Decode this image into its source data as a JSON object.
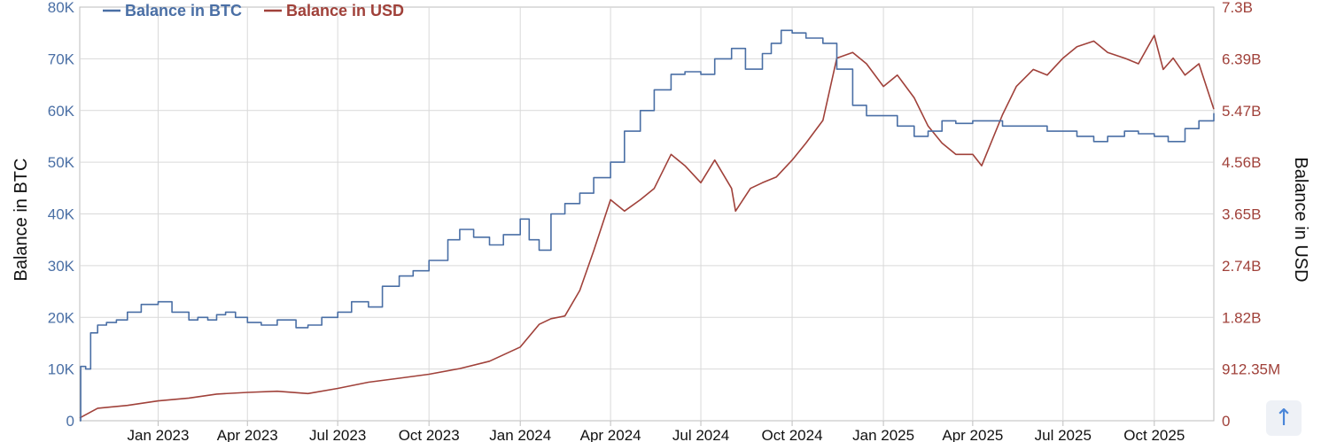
{
  "chart_data": {
    "type": "line",
    "title": "",
    "xlabel": "",
    "ylabel": "Balance in BTC",
    "y2label": "Balance in USD",
    "grid": true,
    "legend_position": "top-left",
    "x_ticks": [
      "Jan 2023",
      "Apr 2023",
      "Jul 2023",
      "Oct 2023",
      "Jan 2024",
      "Apr 2024",
      "Jul 2024",
      "Oct 2024",
      "Jan 2025",
      "Apr 2025",
      "Jul 2025",
      "Oct 2025"
    ],
    "x_range": [
      "2022-10-14",
      "2025-11-30"
    ],
    "y_ticks": [
      "0",
      "10K",
      "20K",
      "30K",
      "40K",
      "50K",
      "60K",
      "70K",
      "80K"
    ],
    "ylim": [
      0,
      80000
    ],
    "y2_ticks": [
      "0",
      "912.35M",
      "1.82B",
      "2.74B",
      "3.65B",
      "4.56B",
      "5.47B",
      "6.39B",
      "7.3B"
    ],
    "y2lim": [
      0,
      7300000000
    ],
    "series": [
      {
        "name": "Balance in BTC",
        "color": "#4a6fa5",
        "axis": "left",
        "x": [
          "2022-10-14",
          "2022-10-15",
          "2022-10-20",
          "2022-10-25",
          "2022-11-01",
          "2022-11-10",
          "2022-11-20",
          "2022-12-01",
          "2022-12-15",
          "2023-01-01",
          "2023-01-15",
          "2023-02-01",
          "2023-02-10",
          "2023-02-20",
          "2023-03-01",
          "2023-03-10",
          "2023-03-20",
          "2023-04-01",
          "2023-04-15",
          "2023-05-01",
          "2023-05-20",
          "2023-06-01",
          "2023-06-15",
          "2023-07-01",
          "2023-07-15",
          "2023-08-01",
          "2023-08-15",
          "2023-09-01",
          "2023-09-15",
          "2023-10-01",
          "2023-10-20",
          "2023-11-01",
          "2023-11-15",
          "2023-12-01",
          "2023-12-15",
          "2024-01-01",
          "2024-01-10",
          "2024-01-20",
          "2024-02-01",
          "2024-02-15",
          "2024-03-01",
          "2024-03-15",
          "2024-04-01",
          "2024-04-15",
          "2024-05-01",
          "2024-05-15",
          "2024-06-01",
          "2024-06-15",
          "2024-07-01",
          "2024-07-15",
          "2024-08-01",
          "2024-08-15",
          "2024-09-01",
          "2024-09-10",
          "2024-09-20",
          "2024-10-01",
          "2024-10-15",
          "2024-11-01",
          "2024-11-15",
          "2024-12-01",
          "2024-12-15",
          "2025-01-01",
          "2025-01-15",
          "2025-02-01",
          "2025-02-15",
          "2025-03-01",
          "2025-03-15",
          "2025-04-01",
          "2025-04-15",
          "2025-05-01",
          "2025-06-01",
          "2025-06-15",
          "2025-07-01",
          "2025-07-15",
          "2025-08-01",
          "2025-08-15",
          "2025-09-01",
          "2025-09-15",
          "2025-10-01",
          "2025-10-15",
          "2025-11-01",
          "2025-11-15",
          "2025-11-30"
        ],
        "values": [
          0,
          10500,
          10000,
          17000,
          18500,
          19000,
          19500,
          21000,
          22500,
          23000,
          21000,
          19500,
          20000,
          19500,
          20500,
          21000,
          20000,
          19000,
          18500,
          19500,
          18000,
          18500,
          20000,
          21000,
          23000,
          22000,
          26000,
          28000,
          29000,
          31000,
          35000,
          37000,
          35500,
          34000,
          36000,
          39000,
          35000,
          33000,
          40000,
          42000,
          44000,
          47000,
          50000,
          56000,
          60000,
          64000,
          67000,
          67500,
          67000,
          70000,
          72000,
          68000,
          71000,
          73000,
          75500,
          75000,
          74000,
          73000,
          68000,
          61000,
          59000,
          59000,
          57000,
          55000,
          56000,
          58000,
          57500,
          58000,
          58000,
          57000,
          57000,
          56000,
          56000,
          55000,
          54000,
          55000,
          56000,
          55500,
          55000,
          54000,
          56500,
          58000,
          59500
        ]
      },
      {
        "name": "Balance in USD",
        "color": "#a0413a",
        "axis": "right",
        "x": [
          "2022-10-14",
          "2022-11-01",
          "2022-12-01",
          "2023-01-01",
          "2023-02-01",
          "2023-03-01",
          "2023-04-01",
          "2023-05-01",
          "2023-06-01",
          "2023-07-01",
          "2023-08-01",
          "2023-09-01",
          "2023-10-01",
          "2023-11-01",
          "2023-12-01",
          "2024-01-01",
          "2024-01-20",
          "2024-02-01",
          "2024-02-15",
          "2024-03-01",
          "2024-03-15",
          "2024-04-01",
          "2024-04-15",
          "2024-05-01",
          "2024-05-15",
          "2024-06-01",
          "2024-06-15",
          "2024-07-01",
          "2024-07-15",
          "2024-08-01",
          "2024-08-05",
          "2024-08-20",
          "2024-09-01",
          "2024-09-15",
          "2024-10-01",
          "2024-10-15",
          "2024-11-01",
          "2024-11-15",
          "2024-12-01",
          "2024-12-15",
          "2025-01-01",
          "2025-01-15",
          "2025-02-01",
          "2025-02-15",
          "2025-03-01",
          "2025-03-15",
          "2025-04-01",
          "2025-04-10",
          "2025-05-01",
          "2025-05-15",
          "2025-06-01",
          "2025-06-15",
          "2025-07-01",
          "2025-07-15",
          "2025-08-01",
          "2025-08-15",
          "2025-09-01",
          "2025-09-15",
          "2025-10-01",
          "2025-10-10",
          "2025-10-20",
          "2025-11-01",
          "2025-11-15",
          "2025-11-30"
        ],
        "values": [
          50000000,
          220000000,
          270000000,
          350000000,
          400000000,
          470000000,
          500000000,
          520000000,
          480000000,
          570000000,
          680000000,
          750000000,
          820000000,
          920000000,
          1050000000,
          1300000000,
          1700000000,
          1800000000,
          1850000000,
          2300000000,
          3000000000,
          3900000000,
          3700000000,
          3900000000,
          4100000000,
          4700000000,
          4500000000,
          4200000000,
          4600000000,
          4100000000,
          3700000000,
          4100000000,
          4200000000,
          4300000000,
          4600000000,
          4900000000,
          5300000000,
          6400000000,
          6500000000,
          6300000000,
          5900000000,
          6100000000,
          5700000000,
          5200000000,
          4900000000,
          4700000000,
          4700000000,
          4500000000,
          5400000000,
          5900000000,
          6200000000,
          6100000000,
          6400000000,
          6600000000,
          6700000000,
          6500000000,
          6400000000,
          6300000000,
          6800000000,
          6200000000,
          6400000000,
          6100000000,
          6300000000,
          5500000000
        ]
      }
    ]
  },
  "scroll_top_icon": "arrow-up-icon",
  "scroll_top_glyph": "↑"
}
